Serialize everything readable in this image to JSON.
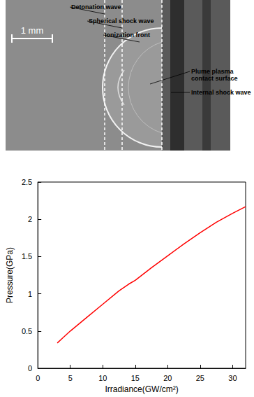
{
  "photo": {
    "scale_bar": "1 mm",
    "labels": [
      [
        "Detonation wave"
      ],
      [
        "Spherical shock wave"
      ],
      [
        "Ionization front"
      ],
      [
        "Plume plasma",
        "contact surface"
      ],
      [
        "Internal shock wave"
      ]
    ]
  },
  "chart_data": {
    "type": "line",
    "x_label": "Irradiance(GW/cm²)",
    "y_label": "Pressure(GPa)",
    "x": [
      3,
      4,
      5,
      7.5,
      10,
      12.5,
      14,
      15,
      17.5,
      20,
      22.5,
      25,
      27.5,
      30,
      32
    ],
    "values": [
      0.34,
      0.42,
      0.5,
      0.68,
      0.86,
      1.04,
      1.13,
      1.18,
      1.35,
      1.51,
      1.67,
      1.82,
      1.96,
      2.08,
      2.17
    ],
    "color": "#ff0000",
    "xlim": [
      0,
      32
    ],
    "xticks": [
      0,
      5,
      10,
      15,
      20,
      25,
      30
    ],
    "ylim": [
      0,
      2.5
    ],
    "yticks": [
      0,
      0.5,
      1,
      1.5,
      2,
      2.5
    ],
    "grid": false
  }
}
